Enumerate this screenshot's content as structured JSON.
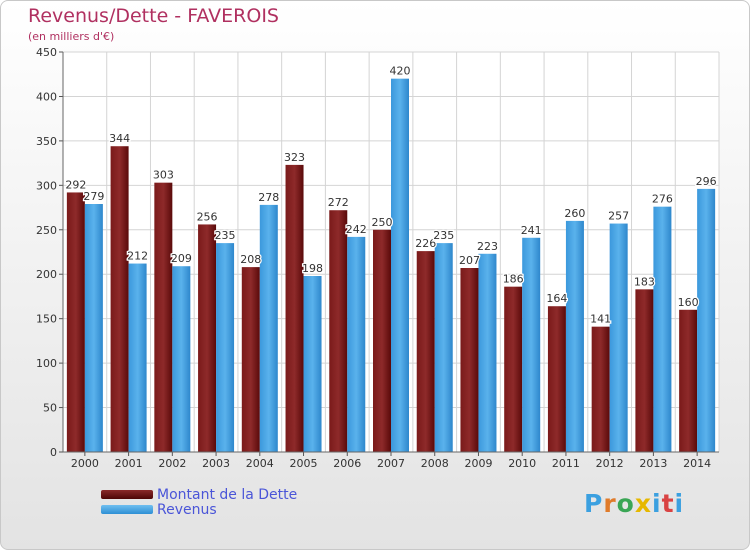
{
  "chart_data": {
    "type": "bar",
    "title": "Revenus/Dette - FAVEROIS",
    "subtitle": "(en milliers d'€)",
    "categories": [
      "2000",
      "2001",
      "2002",
      "2003",
      "2004",
      "2005",
      "2006",
      "2007",
      "2008",
      "2009",
      "2010",
      "2011",
      "2012",
      "2013",
      "2014"
    ],
    "series": [
      {
        "name": "Montant de la Dette",
        "values": [
          292,
          344,
          303,
          256,
          208,
          323,
          272,
          250,
          226,
          207,
          186,
          164,
          141,
          183,
          160
        ],
        "color": "#6e1414"
      },
      {
        "name": "Revenus",
        "values": [
          279,
          212,
          209,
          235,
          278,
          198,
          242,
          420,
          235,
          223,
          241,
          260,
          257,
          276,
          296
        ],
        "color": "#3d9ee0"
      }
    ],
    "ylim": [
      0,
      450
    ],
    "yticks": [
      0,
      50,
      100,
      150,
      200,
      250,
      300,
      350,
      400,
      450
    ],
    "grid": true,
    "legend_position": "bottom-left"
  },
  "logo_text": "Proxiti"
}
